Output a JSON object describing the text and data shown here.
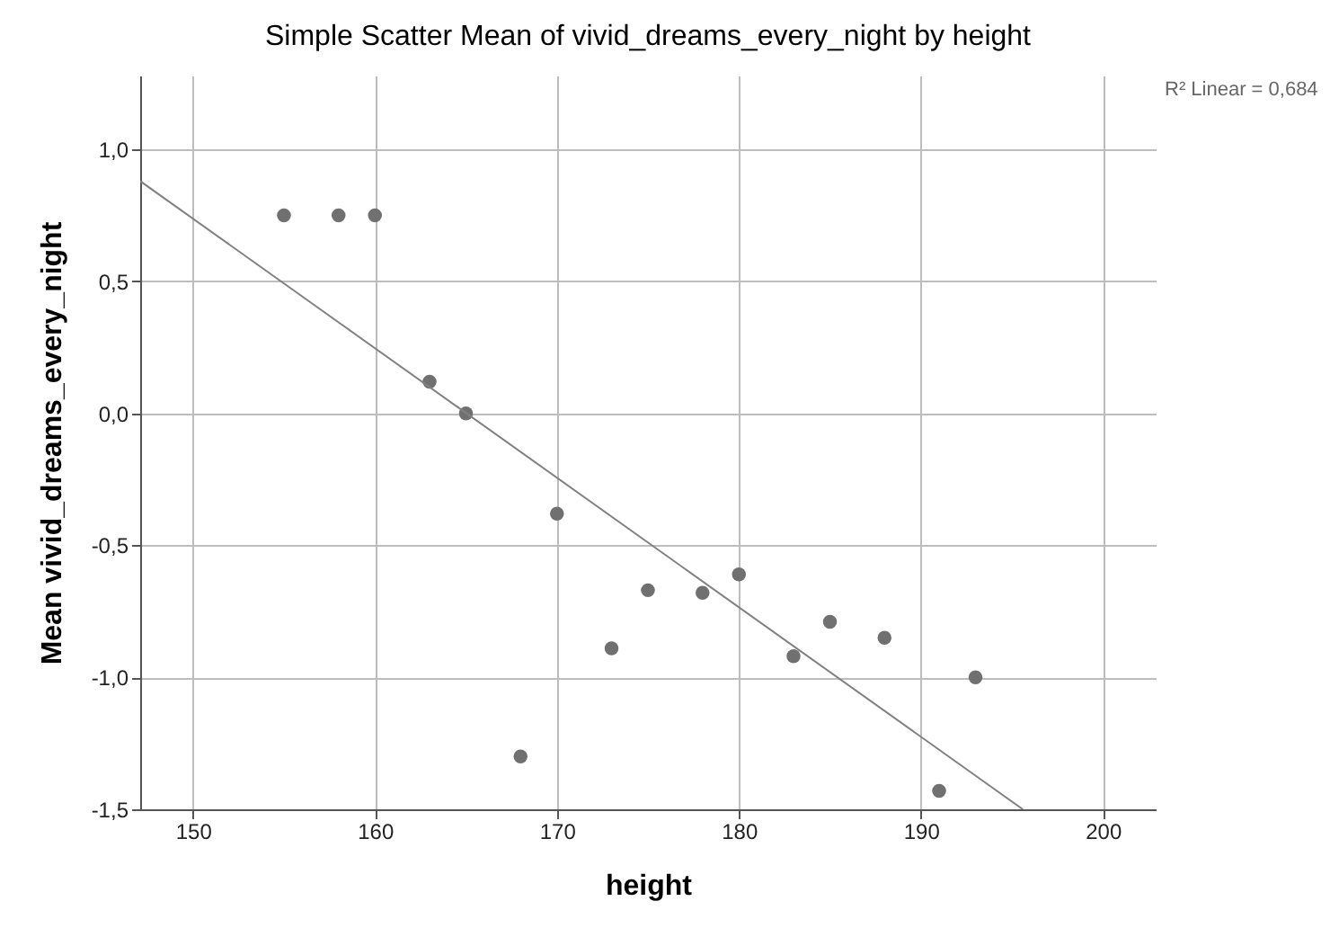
{
  "chart_data": {
    "type": "scatter",
    "title": "Simple Scatter Mean of vivid_dreams_every_night by height",
    "xlabel": "height",
    "ylabel": "Mean vivid_dreams_every_night",
    "annotations": [
      "R² Linear = 0,684"
    ],
    "series": [
      {
        "type": "scatter",
        "color": "#707070",
        "marker": "circle",
        "x": [
          155,
          158,
          160,
          163,
          165,
          168,
          170,
          173,
          175,
          178,
          180,
          183,
          185,
          188,
          191,
          193
        ],
        "values": [
          0.75,
          0.75,
          0.75,
          0.12,
          0.0,
          -1.3,
          -0.38,
          -0.89,
          -0.67,
          -0.68,
          -0.61,
          -0.92,
          -0.79,
          -0.85,
          -1.43,
          -1.0
        ]
      },
      {
        "type": "line",
        "color": "#808080",
        "x": [
          147.1,
          195.6
        ],
        "values": [
          0.88,
          -1.5
        ]
      }
    ],
    "xlim": [
      147.1,
      202.9
    ],
    "xticks": [
      150,
      160,
      170,
      180,
      190,
      200
    ],
    "ylim": [
      -1.5,
      1.28
    ],
    "yticks": [
      {
        "value": -1.5,
        "label": "-1,5"
      },
      {
        "value": -1.0,
        "label": "-1,0"
      },
      {
        "value": -0.5,
        "label": "-0,5"
      },
      {
        "value": 0,
        "label": "0,0"
      },
      {
        "value": 0.5,
        "label": "0,5"
      },
      {
        "value": 1.0,
        "label": "1,0"
      }
    ],
    "grid": true,
    "line_style": "solid"
  }
}
